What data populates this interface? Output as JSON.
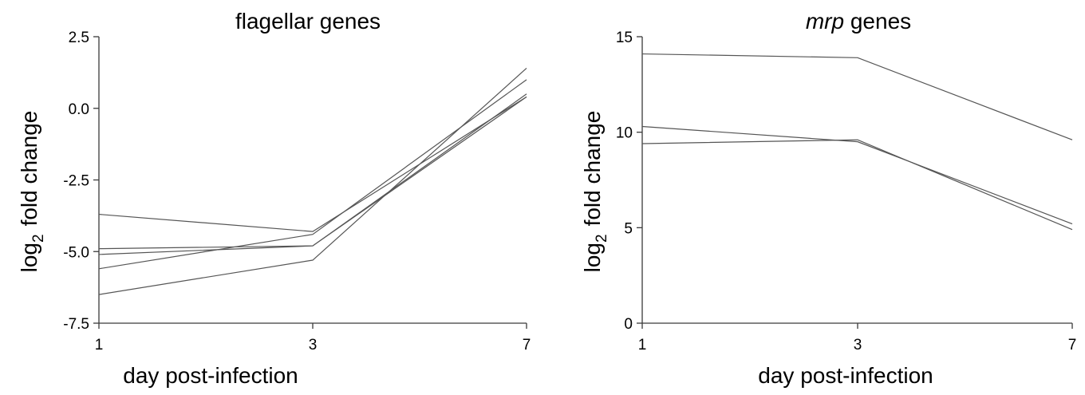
{
  "chart_data": [
    {
      "type": "line",
      "title": "flagellar genes",
      "xlabel": "day post-infection",
      "ylabel": "fold change",
      "ylabel_prefix": "log",
      "ylabel_subscript": "2",
      "x": [
        1,
        3,
        7
      ],
      "x_tick_labels": [
        "1",
        "3",
        "7"
      ],
      "y_ticks": [
        2.5,
        0.0,
        -2.5,
        -5.0,
        -7.5
      ],
      "y_tick_labels": [
        "2.5",
        "0.0",
        "-2.5",
        "-5.0",
        "-7.5"
      ],
      "ylim": [
        -7.5,
        2.5
      ],
      "grid": false,
      "series": [
        {
          "values": [
            -3.7,
            -4.3,
            0.4
          ]
        },
        {
          "values": [
            -4.9,
            -4.8,
            0.4
          ]
        },
        {
          "values": [
            -5.1,
            -4.8,
            0.5
          ]
        },
        {
          "values": [
            -5.6,
            -4.4,
            1.0
          ]
        },
        {
          "values": [
            -6.5,
            -5.3,
            1.4
          ]
        }
      ]
    },
    {
      "type": "line",
      "title_italic": "mrp",
      "title": " genes",
      "xlabel": "day post-infection",
      "ylabel": "fold change",
      "ylabel_prefix": "log",
      "ylabel_subscript": "2",
      "x": [
        1,
        3,
        7
      ],
      "x_tick_labels": [
        "1",
        "3",
        "7"
      ],
      "y_ticks": [
        15,
        10,
        5,
        0
      ],
      "y_tick_labels": [
        "15",
        "10",
        "5",
        "0"
      ],
      "ylim": [
        0,
        15
      ],
      "grid": false,
      "series": [
        {
          "values": [
            14.1,
            13.9,
            9.6
          ]
        },
        {
          "values": [
            10.3,
            9.5,
            5.2
          ]
        },
        {
          "values": [
            9.4,
            9.6,
            4.9
          ]
        }
      ]
    }
  ]
}
